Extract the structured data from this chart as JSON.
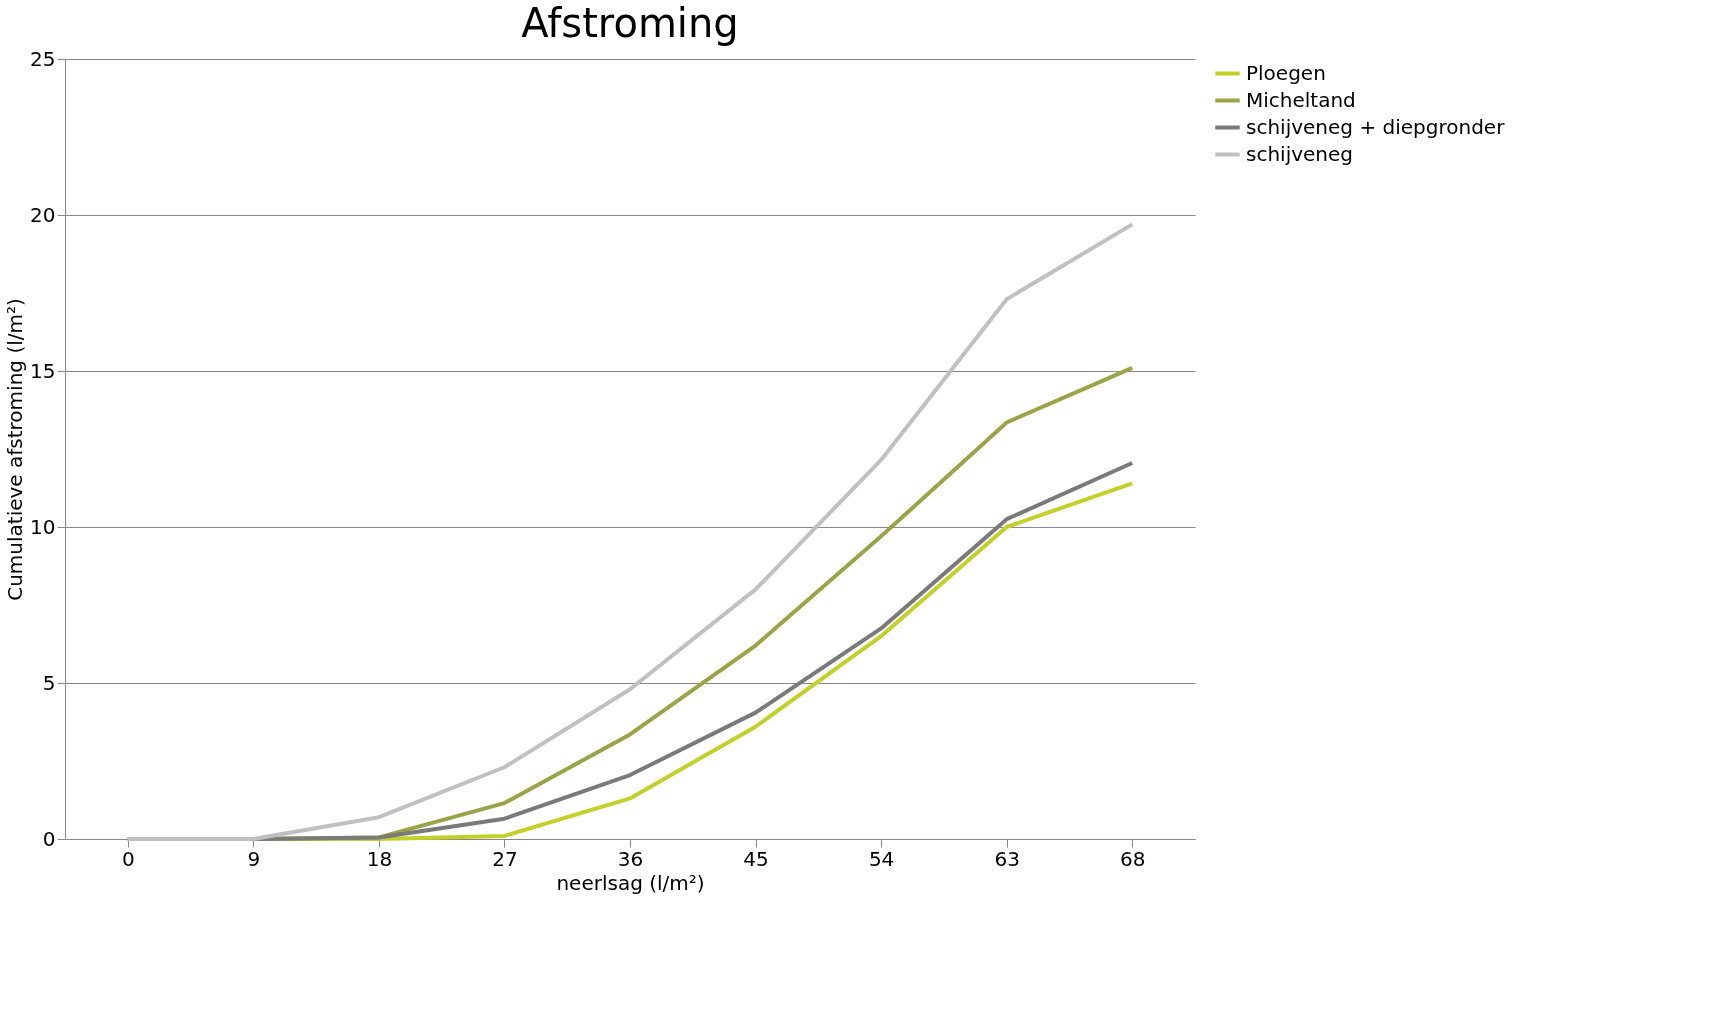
{
  "chart_data": {
    "type": "line",
    "title": "Afstroming",
    "xlabel": "neerlsag (l/m²)",
    "ylabel": "Cumulatieve afstroming (l/m²)",
    "categories": [
      "0",
      "9",
      "18",
      "27",
      "36",
      "45",
      "54",
      "63",
      "68"
    ],
    "series": [
      {
        "name": "Ploegen",
        "color": "#c3d02a",
        "values": [
          0,
          0,
          0,
          0.1,
          1.3,
          3.6,
          6.5,
          10.0,
          11.4
        ]
      },
      {
        "name": "Micheltand",
        "color": "#9aa446",
        "values": [
          0,
          0,
          0.05,
          1.15,
          3.35,
          6.2,
          9.7,
          13.35,
          15.1
        ]
      },
      {
        "name": "schijveneg + diepgronder",
        "color": "#7a7a7a",
        "values": [
          0,
          0,
          0.05,
          0.65,
          2.05,
          4.05,
          6.75,
          10.25,
          12.05
        ]
      },
      {
        "name": "schijveneg",
        "color": "#c0c0c0",
        "values": [
          0,
          0,
          0.7,
          2.3,
          4.8,
          8.0,
          12.15,
          17.3,
          19.7
        ]
      }
    ],
    "ylim": [
      0,
      25
    ],
    "yticks": [
      0,
      5,
      10,
      15,
      20,
      25
    ],
    "grid": "y",
    "legend": "right",
    "marker": "none",
    "line_style": "solid"
  }
}
